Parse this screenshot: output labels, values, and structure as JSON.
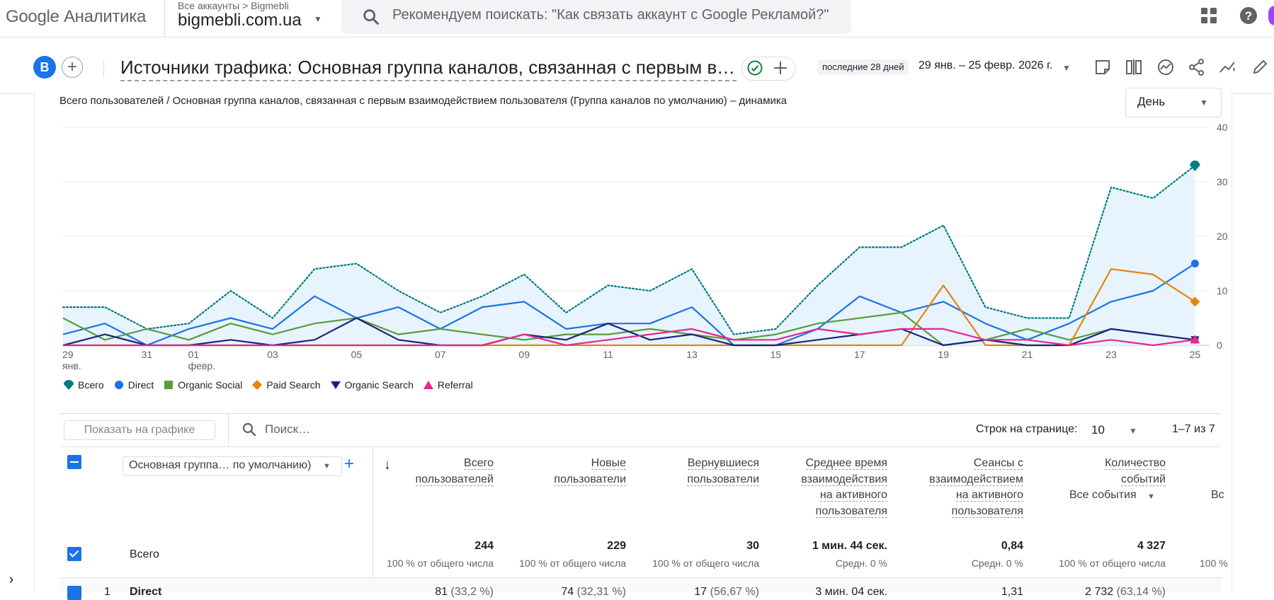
{
  "app": {
    "logo": "Google Аналитика",
    "breadcrumb": "Все аккаунты > Bigmebli",
    "property": "bigmebli.com.ua",
    "search_placeholder": "Рекомендуем поискать: \"Как связать аккаунт с Google Рекламой?\""
  },
  "report": {
    "segment_letter": "B",
    "title": "Источники трафика: Основная группа каналов, связанная с первым взаимодействием пользователя",
    "period_chip": "последние 28 дней",
    "date_range": "29 янв. – 25 февр. 2026 г."
  },
  "chart": {
    "title": "Всего пользователей / Основная группа каналов, связанная с первым взаимодействием пользователя (Группа каналов по умолчанию) – динамика",
    "granularity": "День"
  },
  "chart_data": {
    "type": "line",
    "title": "Всего пользователей / Основная группа каналов, связанная с первым взаимодействием пользователя (Группа каналов по умолчанию) – динамика",
    "x_tick_labels": [
      {
        "index": 0,
        "label": "29",
        "sub": "янв."
      },
      {
        "index": 2,
        "label": "31"
      },
      {
        "index": 3,
        "label": "01",
        "sub": "февр."
      },
      {
        "index": 5,
        "label": "03"
      },
      {
        "index": 7,
        "label": "05"
      },
      {
        "index": 9,
        "label": "07"
      },
      {
        "index": 11,
        "label": "09"
      },
      {
        "index": 13,
        "label": "11"
      },
      {
        "index": 15,
        "label": "13"
      },
      {
        "index": 17,
        "label": "15"
      },
      {
        "index": 19,
        "label": "17"
      },
      {
        "index": 21,
        "label": "19"
      },
      {
        "index": 23,
        "label": "21"
      },
      {
        "index": 25,
        "label": "23"
      },
      {
        "index": 27,
        "label": "25"
      }
    ],
    "y_ticks": [
      0,
      10,
      20,
      30,
      40
    ],
    "ylim": [
      0,
      40
    ],
    "y_axis_side": "right",
    "legend_position": "bottom-left",
    "series": [
      {
        "name": "Всего",
        "color": "#007b83",
        "style": "dotted-area",
        "marker": "pin",
        "values": [
          7,
          7,
          3,
          4,
          10,
          5,
          14,
          15,
          10,
          6,
          9,
          13,
          6,
          11,
          10,
          14,
          2,
          3,
          11,
          18,
          18,
          22,
          7,
          5,
          5,
          29,
          27,
          33
        ]
      },
      {
        "name": "Direct",
        "color": "#1a73e8",
        "style": "solid",
        "marker": "circle",
        "values": [
          2,
          4,
          0,
          3,
          5,
          3,
          9,
          5,
          7,
          3,
          7,
          8,
          3,
          4,
          4,
          7,
          0,
          0,
          3,
          9,
          6,
          8,
          4,
          1,
          4,
          8,
          10,
          15
        ]
      },
      {
        "name": "Organic Social",
        "color": "#5a9b3d",
        "style": "solid",
        "marker": "square",
        "values": [
          5,
          1,
          3,
          1,
          4,
          2,
          4,
          5,
          2,
          3,
          2,
          1,
          2,
          2,
          3,
          2,
          1,
          2,
          4,
          5,
          6,
          0,
          1,
          3,
          1,
          3,
          2,
          1
        ]
      },
      {
        "name": "Paid Search",
        "color": "#e8830c",
        "style": "solid",
        "marker": "diamond",
        "values": [
          0,
          0,
          0,
          0,
          0,
          0,
          0,
          0,
          0,
          0,
          0,
          0,
          0,
          0,
          0,
          0,
          0,
          0,
          0,
          0,
          0,
          11,
          0,
          0,
          0,
          14,
          13,
          8
        ]
      },
      {
        "name": "Organic Search",
        "color": "#1b237e",
        "style": "solid",
        "marker": "triangle-down",
        "values": [
          0,
          2,
          0,
          0,
          1,
          0,
          1,
          5,
          1,
          0,
          0,
          2,
          1,
          4,
          1,
          2,
          0,
          0,
          1,
          2,
          3,
          0,
          1,
          0,
          0,
          3,
          2,
          1
        ]
      },
      {
        "name": "Referral",
        "color": "#e52592",
        "style": "solid",
        "marker": "triangle-up",
        "values": [
          0,
          0,
          0,
          0,
          0,
          0,
          0,
          0,
          0,
          0,
          0,
          2,
          0,
          1,
          2,
          3,
          1,
          1,
          3,
          2,
          3,
          3,
          1,
          1,
          0,
          1,
          0,
          1
        ]
      }
    ]
  },
  "table": {
    "plot_button": "Показать на графике",
    "search_placeholder": "Поиск…",
    "rows_per_page_label": "Строк на странице:",
    "rows_per_page": "10",
    "pager": "1–7 из 7",
    "dimension": "Основная группа… по умолчанию)",
    "columns": [
      {
        "l1": "Всего",
        "l2": "пользователей"
      },
      {
        "l1": "Новые",
        "l2": "пользователи"
      },
      {
        "l1": "Вернувшиеся",
        "l2": "пользователи"
      },
      {
        "l1": "Среднее время",
        "l2": "взаимодействия",
        "l3": "на активного",
        "l4": "пользователя"
      },
      {
        "l1": "Сеансы с",
        "l2": "взаимодействием",
        "l3": "на активного",
        "l4": "пользователя"
      },
      {
        "l1": "Количество",
        "l2": "событий"
      }
    ],
    "events_select": "Все события",
    "cut_column": "Вс",
    "total_label": "Всего",
    "totals": [
      {
        "value": "244",
        "sub": "100 % от общего числа"
      },
      {
        "value": "229",
        "sub": "100 % от общего числа"
      },
      {
        "value": "30",
        "sub": "100 % от общего числа"
      },
      {
        "value": "1 мин. 44 сек.",
        "sub": "Средн. 0 %"
      },
      {
        "value": "0,84",
        "sub": "Средн. 0 %"
      },
      {
        "value": "4 327",
        "sub": "100 % от общего числа"
      },
      {
        "value": "",
        "sub": "100 %"
      }
    ],
    "row1": {
      "index": "1",
      "name": "Direct",
      "cells": [
        {
          "v": "81",
          "p": "(33,2 %)"
        },
        {
          "v": "74",
          "p": "(32,31 %)"
        },
        {
          "v": "17",
          "p": "(56,67 %)"
        },
        {
          "v": "3 мин. 04 сек.",
          "p": ""
        },
        {
          "v": "1,31",
          "p": ""
        },
        {
          "v": "2 732",
          "p": "(63,14 %)"
        }
      ]
    }
  }
}
